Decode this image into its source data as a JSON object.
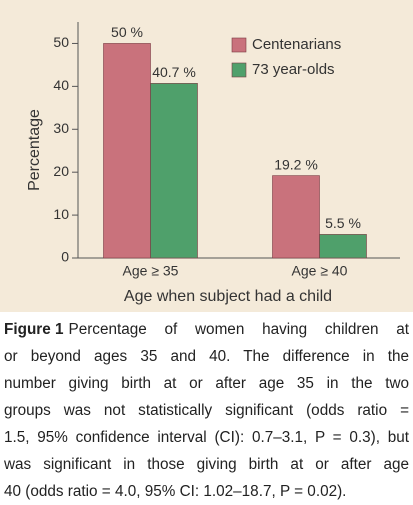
{
  "chart_data": {
    "type": "bar",
    "categories": [
      "Age ≥ 35",
      "Age ≥ 40"
    ],
    "x_label": "Age when subject had a child",
    "y_label": "Percentage",
    "series": [
      {
        "name": "Centenarians",
        "color": "#c9727c",
        "values": [
          50,
          19.2
        ],
        "value_labels": [
          "50 %",
          "19.2 %"
        ]
      },
      {
        "name": "73 year-olds",
        "color": "#4fa06b",
        "values": [
          40.7,
          5.5
        ],
        "value_labels": [
          "40.7 %",
          "5.5 %"
        ]
      }
    ],
    "ylim": [
      0,
      55
    ],
    "yticks": [
      0,
      10,
      20,
      30,
      40,
      50
    ],
    "grid": false,
    "legend": "upper right"
  },
  "caption": {
    "label": "Figure 1",
    "lines": [
      "Percentage of women having children at",
      "or beyond ages 35 and 40. The difference in the",
      "number giving birth at or after age 35 in the two",
      "groups was not statistically significant (odds ratio =",
      "1.5, 95% confidence interval (CI): 0.7–3.1, P = 0.3), but",
      "was significant in those giving birth at or after age",
      "40 (odds ratio = 4.0, 95% CI: 1.02–18.7, P = 0.02)."
    ]
  }
}
